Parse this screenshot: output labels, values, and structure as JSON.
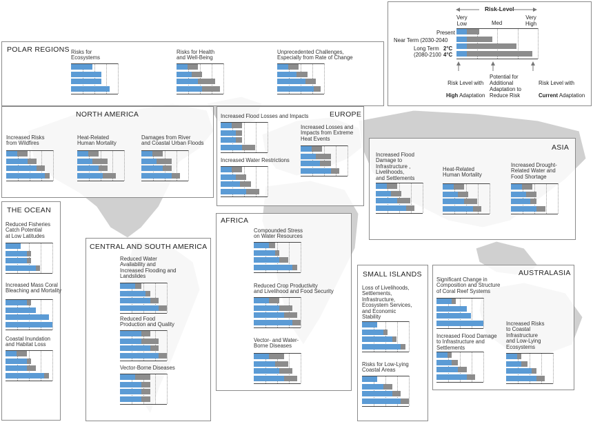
{
  "colors": {
    "low_adapt": "#5b9bd5",
    "current_adapt": "#8c8c8c",
    "frame": "#8a8a8a",
    "land": "#d0d0d0"
  },
  "legend": {
    "title": "Risk-Level",
    "very_low": "Very\nLow",
    "med": "Med",
    "very_high": "Very\nHigh",
    "present": "Present",
    "near_term": "Near Term (2030-2040",
    "long_term": "Long Term",
    "long_term_years": "(2080-2100",
    "two_c": "2°C",
    "four_c": "4°C",
    "high_adapt_1": "Risk Level with",
    "high_adapt_2": "High",
    "high_adapt_3": " Adaptation",
    "potential": "Potential for\nAdditional\nAdaptation to\nReduce Risk",
    "current_adapt_1": "Risk Level with",
    "current_adapt_2": "Current",
    "current_adapt_3": " Adaptation",
    "bars": [
      [
        0.13,
        0.28
      ],
      [
        0.13,
        0.44
      ],
      [
        0.13,
        0.74
      ],
      [
        0.13,
        0.93
      ]
    ]
  },
  "chart_data": {
    "type": "bar",
    "scale": "Risk level from Very Low (0) to Very High (1); blue = risk with high adaptation, grey = risk with current adaptation",
    "periods": [
      "Present",
      "Near Term (2030-2040",
      "Long Term 2°C",
      "Long Term 4°C"
    ],
    "regions": [
      {
        "name": "POLAR REGIONS",
        "risks": [
          {
            "label": "Risks for\nEcosystems",
            "bars": [
              [
                0.46,
                0.46
              ],
              [
                0.65,
                0.65
              ],
              [
                0.65,
                0.65
              ],
              [
                0.83,
                0.83
              ]
            ]
          },
          {
            "label": "Risks for Health\nand Well-Being",
            "bars": [
              [
                0.23,
                0.46
              ],
              [
                0.32,
                0.55
              ],
              [
                0.46,
                0.83
              ],
              [
                0.55,
                0.92
              ]
            ]
          },
          {
            "label": "Unprecedented Challenges,\nEspecially from Rate of Change",
            "bars": [
              [
                0.23,
                0.46
              ],
              [
                0.41,
                0.65
              ],
              [
                0.6,
                0.83
              ],
              [
                0.78,
                0.92
              ]
            ]
          }
        ]
      },
      {
        "name": "NORTH AMERICA",
        "risks": [
          {
            "label": "Increased Risks\nfrom Wildfires",
            "bars": [
              [
                0.23,
                0.46
              ],
              [
                0.46,
                0.65
              ],
              [
                0.65,
                0.83
              ],
              [
                0.83,
                0.92
              ]
            ]
          },
          {
            "label": "Heat-Related\nHuman Mortality",
            "bars": [
              [
                0.23,
                0.46
              ],
              [
                0.32,
                0.65
              ],
              [
                0.46,
                0.65
              ],
              [
                0.55,
                0.83
              ]
            ]
          },
          {
            "label": "Damages from River\nand Coastal Urban Floods",
            "bars": [
              [
                0.23,
                0.46
              ],
              [
                0.32,
                0.65
              ],
              [
                0.46,
                0.65
              ],
              [
                0.65,
                0.83
              ]
            ]
          }
        ]
      },
      {
        "name": "EUROPE",
        "risks": [
          {
            "label": "Increased Flood Losses and Impacts",
            "bars": [
              [
                0.23,
                0.46
              ],
              [
                0.32,
                0.46
              ],
              [
                0.32,
                0.46
              ],
              [
                0.46,
                0.74
              ]
            ]
          },
          {
            "label": "Increased Losses and\nImpacts from Extreme\nHeat Events",
            "bars": [
              [
                0.23,
                0.46
              ],
              [
                0.32,
                0.65
              ],
              [
                0.41,
                0.65
              ],
              [
                0.65,
                0.83
              ]
            ]
          },
          {
            "label": "Increased Water Restrictions",
            "bars": [
              [
                0.23,
                0.46
              ],
              [
                0.32,
                0.55
              ],
              [
                0.41,
                0.65
              ],
              [
                0.55,
                0.83
              ]
            ]
          }
        ]
      },
      {
        "name": "ASIA",
        "risks": [
          {
            "label": "Increased Flood\nDamage to\nInfrastructure ,\nLivelihoods,\nand Settlements",
            "bars": [
              [
                0.23,
                0.46
              ],
              [
                0.32,
                0.55
              ],
              [
                0.46,
                0.74
              ],
              [
                0.65,
                0.83
              ]
            ]
          },
          {
            "label": "Heat-Related\nHuman Mortality",
            "bars": [
              [
                0.23,
                0.46
              ],
              [
                0.32,
                0.55
              ],
              [
                0.46,
                0.74
              ],
              [
                0.65,
                0.83
              ]
            ]
          },
          {
            "label": "Increased Drought-\nRelated Water and\nFood Shortage",
            "bars": [
              [
                0.23,
                0.46
              ],
              [
                0.32,
                0.55
              ],
              [
                0.41,
                0.55
              ],
              [
                0.55,
                0.74
              ]
            ]
          }
        ]
      },
      {
        "name": "THE OCEAN",
        "risks": [
          {
            "label": "Reduced Fisheries\nCatch Potential\nat Low Latitudes",
            "bars": [
              [
                0.32,
                0.32
              ],
              [
                0.46,
                0.55
              ],
              [
                0.46,
                0.55
              ],
              [
                0.65,
                0.74
              ]
            ]
          },
          {
            "label": "Increased Mass Coral\nBleaching and Mortality",
            "bars": [
              [
                0.46,
                0.55
              ],
              [
                0.65,
                0.65
              ],
              [
                0.92,
                0.92
              ],
              [
                1.0,
                1.0
              ]
            ]
          },
          {
            "label": "Coastal Inundation\nand Habitat Loss",
            "bars": [
              [
                0.23,
                0.46
              ],
              [
                0.46,
                0.55
              ],
              [
                0.46,
                0.65
              ],
              [
                0.83,
                0.92
              ]
            ]
          }
        ]
      },
      {
        "name": "CENTRAL AND SOUTH AMERICA",
        "risks": [
          {
            "label": "Reduced Water\nAvailability and\nIncreased Flooding and\nLandslides",
            "bars": [
              [
                0.32,
                0.46
              ],
              [
                0.55,
                0.65
              ],
              [
                0.65,
                0.83
              ],
              [
                0.83,
                1.0
              ]
            ]
          },
          {
            "label": "Reduced Food\nProduction and Quality",
            "bars": [
              [
                0.46,
                0.65
              ],
              [
                0.46,
                0.83
              ],
              [
                0.65,
                0.83
              ],
              [
                0.83,
                1.0
              ]
            ]
          },
          {
            "label": "Vector-Borne Diseases",
            "bars": [
              [
                0.32,
                0.65
              ],
              [
                0.46,
                0.65
              ],
              [
                0.46,
                0.65
              ],
              [
                0.46,
                0.65
              ]
            ]
          }
        ]
      },
      {
        "name": "AFRICA",
        "risks": [
          {
            "label": "Compounded Stress\non Water Resources",
            "bars": [
              [
                0.32,
                0.46
              ],
              [
                0.46,
                0.55
              ],
              [
                0.55,
                0.74
              ],
              [
                0.83,
                0.92
              ]
            ]
          },
          {
            "label": "Reduced Crop Productivity\nand Livelihood and Food Security",
            "bars": [
              [
                0.32,
                0.55
              ],
              [
                0.55,
                0.83
              ],
              [
                0.65,
                0.92
              ],
              [
                0.83,
                1.0
              ]
            ]
          },
          {
            "label": "Vector- and Water-\nBorne Diseases",
            "bars": [
              [
                0.32,
                0.65
              ],
              [
                0.46,
                0.74
              ],
              [
                0.55,
                0.83
              ],
              [
                0.65,
                0.92
              ]
            ]
          }
        ]
      },
      {
        "name": "SMALL ISLANDS",
        "risks": [
          {
            "label": "Loss of Livelihoods,\nSettlements,\nInfrastructure,\nEcosystem Services,\nand Economic\nStability",
            "bars": [
              [
                0.32,
                0.32
              ],
              [
                0.46,
                0.55
              ],
              [
                0.65,
                0.74
              ],
              [
                0.83,
                0.92
              ]
            ]
          },
          {
            "label": "Risks for Low-Lying\nCoastal Areas",
            "bars": [
              [
                0.32,
                0.32
              ],
              [
                0.46,
                0.65
              ],
              [
                0.65,
                0.83
              ],
              [
                0.83,
                1.0
              ]
            ]
          }
        ]
      },
      {
        "name": "AUSTRALASIA",
        "risks": [
          {
            "label": "Significant Change in\nComposition and Structure\nof Coral Reef Systems",
            "bars": [
              [
                0.32,
                0.41
              ],
              [
                0.65,
                0.65
              ],
              [
                0.74,
                0.74
              ],
              [
                1.0,
                1.0
              ]
            ]
          },
          {
            "label": "Increased Flood Damage\nto Infrastructure and\nSettlements",
            "bars": [
              [
                0.23,
                0.32
              ],
              [
                0.32,
                0.46
              ],
              [
                0.46,
                0.65
              ],
              [
                0.65,
                0.83
              ]
            ]
          },
          {
            "label": "Increased Risks\nto Coastal\nInfrastructure\nand Low-Lying\nEcosystems",
            "bars": [
              [
                0.23,
                0.32
              ],
              [
                0.32,
                0.46
              ],
              [
                0.55,
                0.65
              ],
              [
                0.65,
                0.83
              ]
            ]
          }
        ]
      }
    ]
  }
}
